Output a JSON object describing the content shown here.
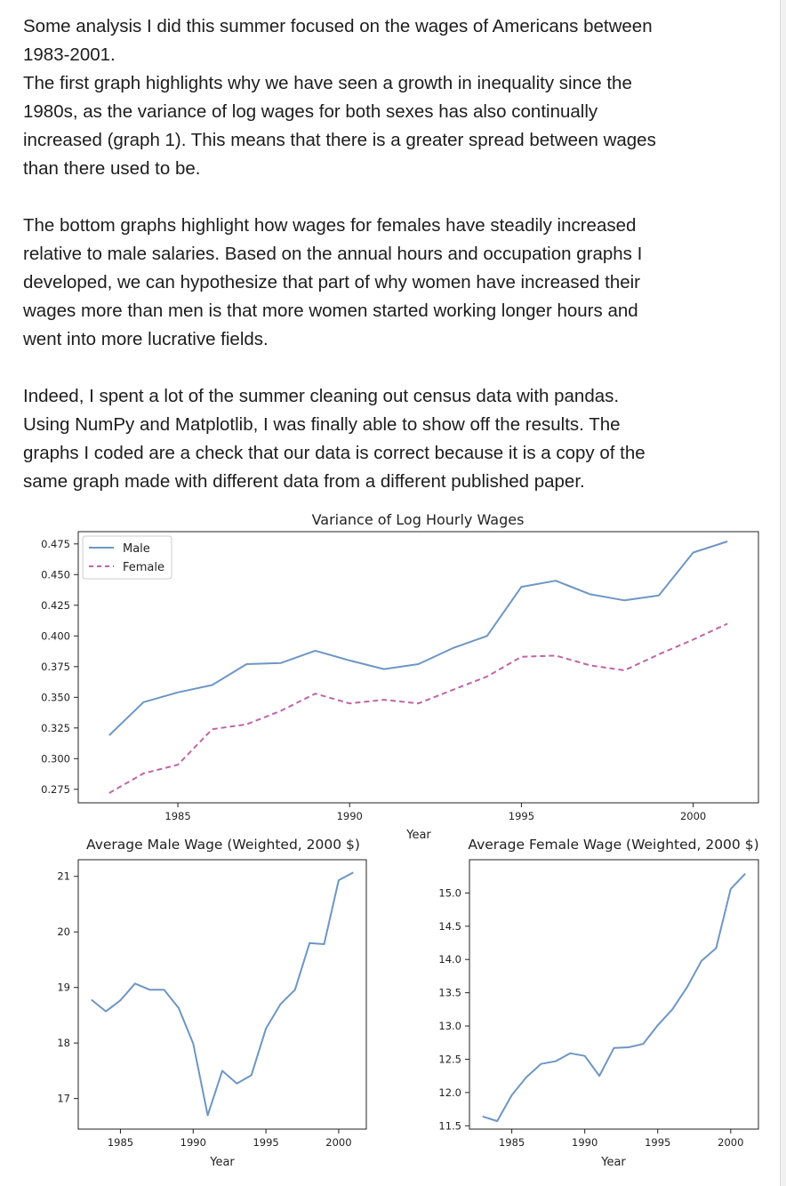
{
  "post": {
    "paragraphs": [
      [
        "Some analysis I did this summer focused on the wages of Americans between",
        "1983-2001.",
        "The first graph highlights why we have seen a growth in inequality since the",
        "1980s, as the variance of log wages for both sexes has also continually",
        "increased (graph 1). This means that there is a greater spread between wages",
        "than there used to be."
      ],
      [
        "The bottom graphs highlight how wages for females have steadily increased",
        "relative to male salaries. Based on the annual hours and occupation graphs I",
        "developed, we can hypothesize that part of why women have increased their",
        "wages more than men is that more women started working longer hours and",
        "went into more lucrative fields."
      ],
      [
        "Indeed, I spent a lot of the summer cleaning out census data with pandas.",
        "Using NumPy and Matplotlib, I was finally able to show off the results. The",
        "graphs I coded are a check that our data is correct because it is a copy of the",
        "same graph made with different data from a different published paper."
      ]
    ]
  },
  "colors": {
    "male": "#6e96c4",
    "female": "#c064a8",
    "axis": "#222222"
  },
  "chart_data": [
    {
      "type": "line",
      "title": "Variance of Log Hourly Wages",
      "xlabel": "Year",
      "ylabel": "",
      "x": [
        1983,
        1984,
        1985,
        1986,
        1987,
        1988,
        1989,
        1990,
        1991,
        1992,
        1993,
        1994,
        1995,
        1996,
        1997,
        1998,
        1999,
        2000,
        2001
      ],
      "series": [
        {
          "name": "Male",
          "style": "solid",
          "values": [
            0.319,
            0.346,
            0.354,
            0.36,
            0.377,
            0.378,
            0.388,
            0.38,
            0.373,
            0.377,
            0.39,
            0.4,
            0.44,
            0.445,
            0.434,
            0.429,
            0.433,
            0.468,
            0.477
          ]
        },
        {
          "name": "Female",
          "style": "dashed",
          "values": [
            0.272,
            0.288,
            0.295,
            0.324,
            0.328,
            0.339,
            0.353,
            0.345,
            0.348,
            0.345,
            0.356,
            0.367,
            0.383,
            0.384,
            0.376,
            0.372,
            0.385,
            0.397,
            0.41
          ]
        }
      ],
      "xlim": [
        1982.1,
        2001.9
      ],
      "ylim": [
        0.264,
        0.485
      ],
      "xticks": [
        1985,
        1990,
        1995,
        2000
      ],
      "yticks": [
        0.275,
        0.3,
        0.325,
        0.35,
        0.375,
        0.4,
        0.425,
        0.45,
        0.475
      ],
      "ytick_labels": [
        "0.275",
        "0.300",
        "0.325",
        "0.350",
        "0.375",
        "0.400",
        "0.425",
        "0.450",
        "0.475"
      ],
      "legend": "top-left",
      "grid": false
    },
    {
      "type": "line",
      "title": "Average Male Wage (Weighted, 2000 $)",
      "xlabel": "Year",
      "ylabel": "",
      "x": [
        1983,
        1984,
        1985,
        1986,
        1987,
        1988,
        1989,
        1990,
        1991,
        1992,
        1993,
        1994,
        1995,
        1996,
        1997,
        1998,
        1999,
        2000,
        2001
      ],
      "series": [
        {
          "name": "",
          "style": "solid",
          "values": [
            18.78,
            18.57,
            18.77,
            19.07,
            18.96,
            18.96,
            18.63,
            17.99,
            16.7,
            17.5,
            17.27,
            17.42,
            18.26,
            18.7,
            18.96,
            19.8,
            19.78,
            20.93,
            21.07
          ]
        }
      ],
      "xlim": [
        1982.1,
        2001.9
      ],
      "ylim": [
        16.45,
        21.3
      ],
      "xticks": [
        1985,
        1990,
        1995,
        2000
      ],
      "yticks": [
        17,
        18,
        19,
        20,
        21
      ],
      "ytick_labels": [
        "17",
        "18",
        "19",
        "20",
        "21"
      ],
      "grid": false
    },
    {
      "type": "line",
      "title": "Average Female Wage (Weighted, 2000 $)",
      "xlabel": "Year",
      "ylabel": "",
      "x": [
        1983,
        1984,
        1985,
        1986,
        1987,
        1988,
        1989,
        1990,
        1991,
        1992,
        1993,
        1994,
        1995,
        1996,
        1997,
        1998,
        1999,
        2000,
        2001
      ],
      "series": [
        {
          "name": "",
          "style": "solid",
          "values": [
            11.64,
            11.57,
            11.96,
            12.23,
            12.43,
            12.47,
            12.59,
            12.55,
            12.25,
            12.67,
            12.68,
            12.73,
            13.01,
            13.25,
            13.58,
            13.98,
            14.17,
            15.06,
            15.29
          ]
        }
      ],
      "xlim": [
        1982.1,
        2001.9
      ],
      "ylim": [
        11.45,
        15.5
      ],
      "xticks": [
        1985,
        1990,
        1995,
        2000
      ],
      "yticks": [
        11.5,
        12.0,
        12.5,
        13.0,
        13.5,
        14.0,
        14.5,
        15.0
      ],
      "ytick_labels": [
        "11.5",
        "12.0",
        "12.5",
        "13.0",
        "13.5",
        "14.0",
        "14.5",
        "15.0"
      ],
      "grid": false
    }
  ]
}
